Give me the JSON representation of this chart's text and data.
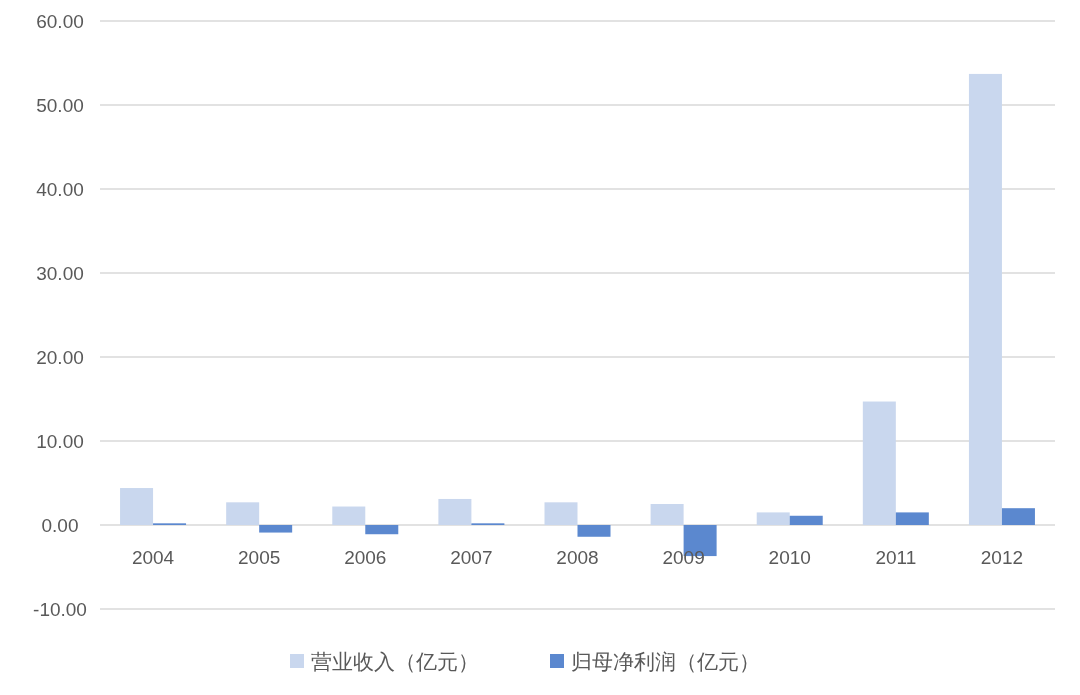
{
  "chart_data": {
    "type": "bar",
    "categories": [
      "2004",
      "2005",
      "2006",
      "2007",
      "2008",
      "2009",
      "2010",
      "2011",
      "2012"
    ],
    "series": [
      {
        "name": "营业收入（亿元）",
        "color": "#c9d7ee",
        "values": [
          4.4,
          2.7,
          2.2,
          3.1,
          2.7,
          2.5,
          1.5,
          14.7,
          53.7
        ]
      },
      {
        "name": "归母净利润（亿元）",
        "color": "#5b88cf",
        "values": [
          0.2,
          -0.9,
          -1.1,
          0.2,
          -1.4,
          -3.7,
          1.1,
          1.5,
          2.0
        ]
      }
    ],
    "ylim": [
      -10,
      60
    ],
    "yticks": [
      {
        "value": -10,
        "label": "-10.00"
      },
      {
        "value": 0,
        "label": "0.00"
      },
      {
        "value": 10,
        "label": "10.00"
      },
      {
        "value": 20,
        "label": "20.00"
      },
      {
        "value": 30,
        "label": "30.00"
      },
      {
        "value": 40,
        "label": "40.00"
      },
      {
        "value": 50,
        "label": "50.00"
      },
      {
        "value": 60,
        "label": "60.00"
      }
    ],
    "grid": "y",
    "legend": "bottom"
  }
}
